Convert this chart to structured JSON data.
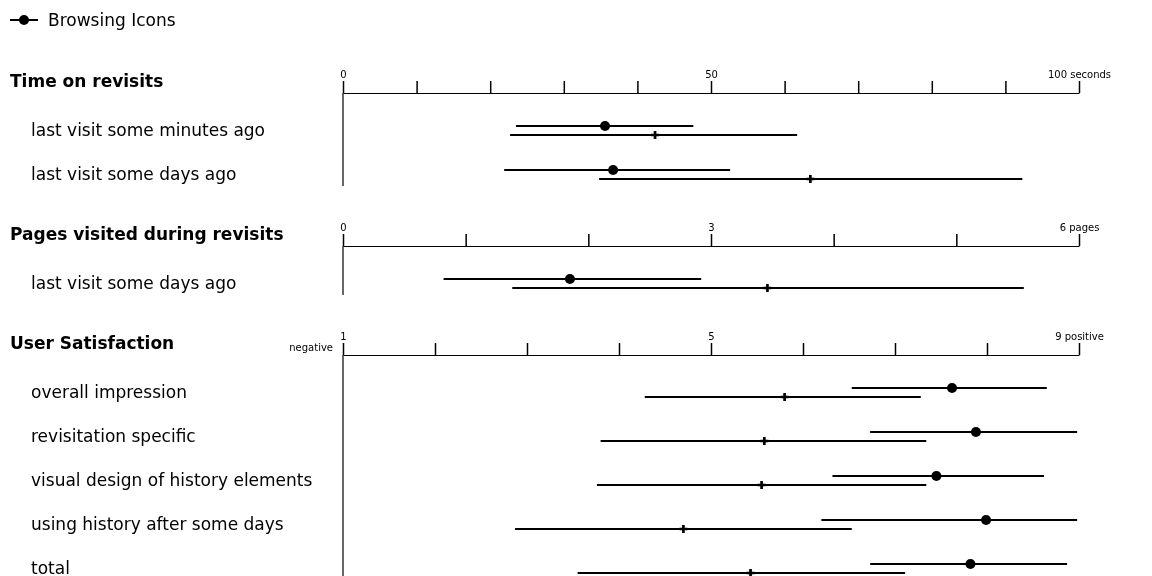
{
  "chart_data": [
    {
      "type": "scatter",
      "orientation": "horizontal",
      "title": "Time on revisits",
      "legend": "top left",
      "categories": [
        "last visit some minutes ago",
        "last visit some days ago"
      ],
      "xlim": [
        0,
        100
      ],
      "xticks": [
        0,
        {
          "value": 10,
          "label": null
        },
        {
          "value": 20,
          "label": null
        },
        {
          "value": 30,
          "label": null
        },
        {
          "value": 40,
          "label": null
        },
        50,
        {
          "value": 60,
          "label": null
        },
        {
          "value": 70,
          "label": null
        },
        {
          "value": 80,
          "label": null
        },
        {
          "value": 90,
          "label": null
        },
        {
          "value": 100,
          "label": "100 seconds"
        }
      ],
      "series": [
        {
          "name": "Browsing Icons",
          "color": "#000000",
          "marker": "circle",
          "values": [
            35.6,
            36.7
          ],
          "errors": [
            [
              23.5,
              47.6
            ],
            [
              21.9,
              52.6
            ]
          ]
        },
        {
          "color": "#000000",
          "marker": "cross",
          "values": [
            42.4,
            63.5
          ],
          "errors": [
            [
              22.7,
              61.7
            ],
            [
              34.8,
              92.3
            ]
          ]
        }
      ]
    },
    {
      "type": "scatter",
      "orientation": "horizontal",
      "title": "Pages visited during revisits",
      "categories": [
        "last visit some days ago"
      ],
      "xlim": [
        0,
        6
      ],
      "xticks": [
        0,
        {
          "value": 1,
          "label": null
        },
        {
          "value": 2,
          "label": null
        },
        3,
        {
          "value": 4,
          "label": null
        },
        {
          "value": 5,
          "label": null
        },
        {
          "value": 6,
          "label": "6 pages"
        }
      ],
      "series": [
        {
          "color": "#000000",
          "marker": "circle",
          "values": [
            1.85
          ],
          "errors": [
            [
              0.82,
              2.92
            ]
          ]
        },
        {
          "color": "#000000",
          "marker": "cross",
          "values": [
            3.46
          ],
          "errors": [
            [
              1.38,
              5.55
            ]
          ]
        }
      ]
    },
    {
      "type": "scatter",
      "orientation": "horizontal",
      "title": "User Satisfaction",
      "annotations": [
        "negative"
      ],
      "categories": [
        "overall impression",
        "revisitation specific",
        "visual design of history elements",
        "using history after some days",
        "total"
      ],
      "xlim": [
        1,
        9
      ],
      "xticks": [
        1,
        {
          "value": 2,
          "label": null
        },
        {
          "value": 3,
          "label": null
        },
        {
          "value": 4,
          "label": null
        },
        5,
        {
          "value": 6,
          "label": null
        },
        {
          "value": 7,
          "label": null
        },
        {
          "value": 8,
          "label": null
        },
        {
          "value": 9,
          "label": "9 positive"
        }
      ],
      "series": [
        {
          "color": "#000000",
          "marker": "circle",
          "values": [
            7.62,
            7.88,
            7.45,
            7.99,
            7.82
          ],
          "errors": [
            [
              6.53,
              8.65
            ],
            [
              6.73,
              8.98
            ],
            [
              6.32,
              8.62
            ],
            [
              6.2,
              8.98
            ],
            [
              6.73,
              8.87
            ]
          ]
        },
        {
          "color": "#000000",
          "marker": "cross",
          "values": [
            5.8,
            5.58,
            5.55,
            4.7,
            5.43
          ],
          "errors": [
            [
              4.28,
              7.28
            ],
            [
              3.8,
              7.34
            ],
            [
              3.76,
              7.34
            ],
            [
              2.87,
              6.53
            ],
            [
              3.55,
              7.11
            ]
          ]
        }
      ]
    }
  ]
}
